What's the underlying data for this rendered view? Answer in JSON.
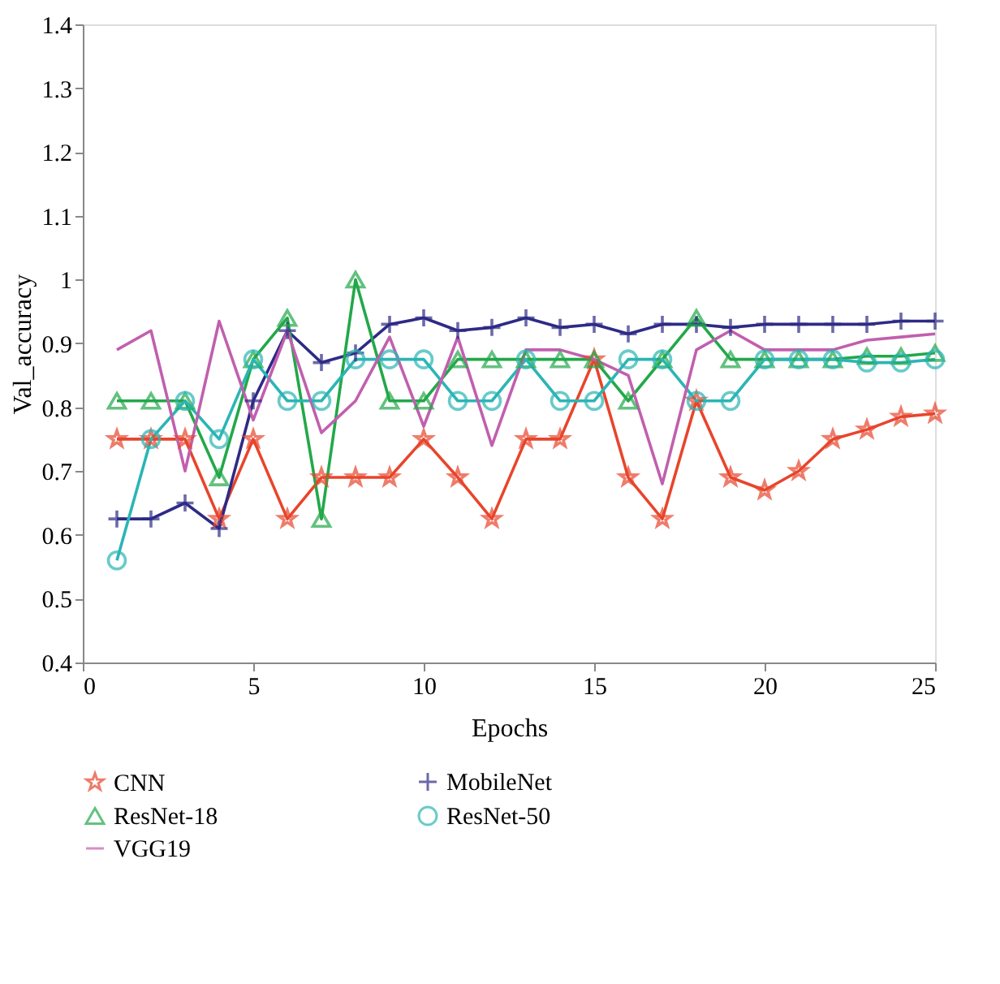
{
  "chart_data": {
    "type": "line",
    "xlabel": "Epochs",
    "ylabel": "Val_accuracy",
    "x": [
      1,
      2,
      3,
      4,
      5,
      6,
      7,
      8,
      9,
      10,
      11,
      12,
      13,
      14,
      15,
      16,
      17,
      18,
      19,
      20,
      21,
      22,
      23,
      24,
      25
    ],
    "series": [
      {
        "name": "CNN",
        "color": "#e8452c",
        "marker": "star",
        "values": [
          0.75,
          0.75,
          0.75,
          0.625,
          0.75,
          0.625,
          0.69,
          0.69,
          0.69,
          0.75,
          0.69,
          0.625,
          0.75,
          0.75,
          0.875,
          0.69,
          0.625,
          0.81,
          0.69,
          0.67,
          0.7,
          0.75,
          0.765,
          0.785,
          0.79
        ]
      },
      {
        "name": "MobileNet",
        "color": "#2e2a86",
        "marker": "cross",
        "values": [
          0.625,
          0.625,
          0.65,
          0.61,
          0.81,
          0.92,
          0.87,
          0.885,
          0.93,
          0.94,
          0.92,
          0.925,
          0.94,
          0.925,
          0.93,
          0.915,
          0.93,
          0.93,
          0.925,
          0.93,
          0.93,
          0.93,
          0.93,
          0.935,
          0.935
        ]
      },
      {
        "name": "ResNet-18",
        "color": "#22a84a",
        "marker": "triangle",
        "values": [
          0.81,
          0.81,
          0.81,
          0.69,
          0.875,
          0.94,
          0.625,
          1.0,
          0.81,
          0.81,
          0.875,
          0.875,
          0.875,
          0.875,
          0.875,
          0.81,
          0.875,
          0.94,
          0.875,
          0.875,
          0.875,
          0.875,
          0.88,
          0.88,
          0.885
        ]
      },
      {
        "name": "ResNet-50",
        "color": "#2bb5b5",
        "marker": "circle",
        "values": [
          0.56,
          0.75,
          0.81,
          0.75,
          0.875,
          0.81,
          0.81,
          0.875,
          0.875,
          0.875,
          0.81,
          0.81,
          0.875,
          0.81,
          0.81,
          0.875,
          0.875,
          0.81,
          0.81,
          0.875,
          0.875,
          0.875,
          0.87,
          0.87,
          0.875
        ]
      },
      {
        "name": "VGG19",
        "color": "#c15fae",
        "marker": "none",
        "values": [
          0.89,
          0.92,
          0.7,
          0.935,
          0.78,
          0.92,
          0.76,
          0.81,
          0.91,
          0.77,
          0.91,
          0.74,
          0.89,
          0.89,
          0.875,
          0.85,
          0.68,
          0.89,
          0.92,
          0.89,
          0.89,
          0.89,
          0.905,
          0.91,
          0.915
        ]
      }
    ],
    "xlim": [
      0,
      25
    ],
    "xticks": [
      0,
      5,
      10,
      15,
      20,
      25
    ],
    "ylim": [
      0.4,
      1.4
    ],
    "yticks": [
      0.4,
      0.5,
      0.6,
      0.7,
      0.8,
      0.9,
      1,
      1.1,
      1.2,
      1.3,
      1.4
    ],
    "grid": false,
    "legend": "bottom",
    "line_style": "solid"
  }
}
